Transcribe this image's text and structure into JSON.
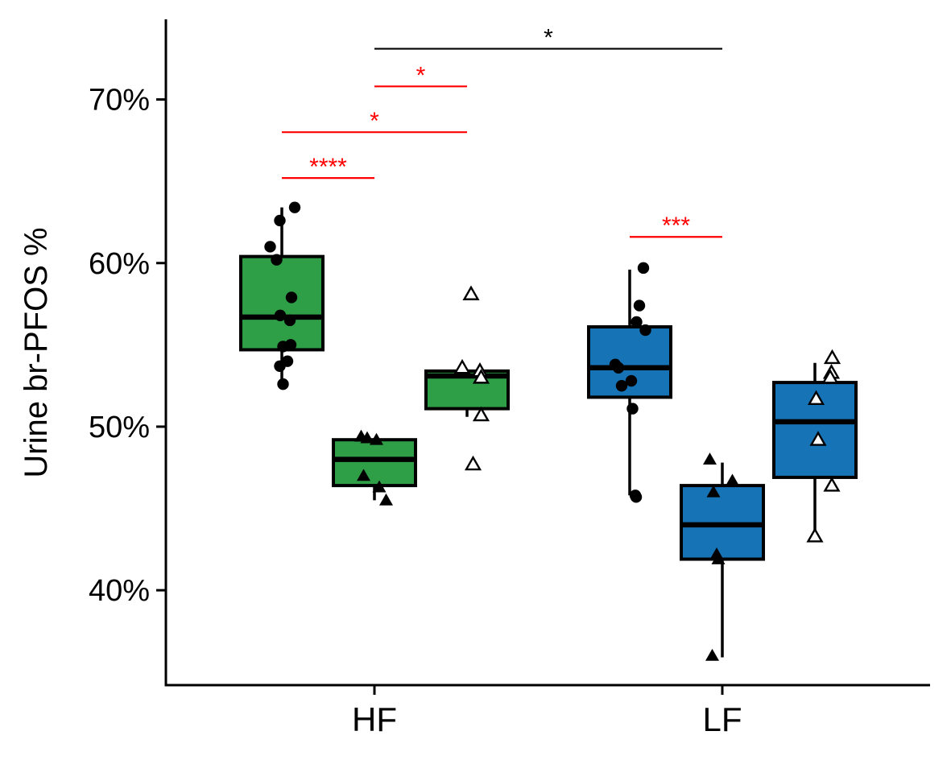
{
  "chart_data": {
    "type": "box",
    "title": "",
    "xlabel": "",
    "ylabel": "Urine br-PFOS %",
    "categories": [
      "HF",
      "LF"
    ],
    "yticks": [
      {
        "value": 40,
        "label": "40%"
      },
      {
        "value": 50,
        "label": "50%"
      },
      {
        "value": 60,
        "label": "60%"
      },
      {
        "value": 70,
        "label": "70%"
      }
    ],
    "ylim": [
      34.2,
      74.9
    ],
    "grid": false,
    "legend": "none",
    "colors": {
      "HF": "#2e9e47",
      "LF": "#1673b6",
      "sig_red": "#ff0000",
      "sig_black": "#000000"
    },
    "groups": [
      {
        "category": "HF",
        "offset": -1,
        "marker": "circle-filled",
        "whisker_low": 52.8,
        "q1": 54.7,
        "median": 56.7,
        "q3": 60.4,
        "whisker_high": 63.4,
        "points": [
          {
            "dx": -0.29,
            "y": 61.0
          },
          {
            "dx": -0.13,
            "y": 60.2
          },
          {
            "dx": -0.05,
            "y": 62.6
          },
          {
            "dx": 0.32,
            "y": 63.4
          },
          {
            "dx": -0.04,
            "y": 56.8
          },
          {
            "dx": 0.24,
            "y": 57.9
          },
          {
            "dx": 0.2,
            "y": 56.5
          },
          {
            "dx": 0.03,
            "y": 54.9
          },
          {
            "dx": 0.22,
            "y": 55.0
          },
          {
            "dx": 0.14,
            "y": 54.0
          },
          {
            "dx": -0.05,
            "y": 53.7
          },
          {
            "dx": 0.03,
            "y": 52.6
          }
        ]
      },
      {
        "category": "HF",
        "offset": 0,
        "marker": "triangle-filled",
        "whisker_low": 45.5,
        "q1": 46.4,
        "median": 48.0,
        "q3": 49.2,
        "whisker_high": 49.3,
        "points": [
          {
            "dx": -0.33,
            "y": 49.4
          },
          {
            "dx": -0.18,
            "y": 49.3
          },
          {
            "dx": 0.05,
            "y": 49.2
          },
          {
            "dx": -0.27,
            "y": 47.0
          },
          {
            "dx": 0.12,
            "y": 46.3
          },
          {
            "dx": 0.29,
            "y": 45.5
          }
        ]
      },
      {
        "category": "HF",
        "offset": 1,
        "marker": "triangle-open",
        "whisker_low": 50.6,
        "q1": 51.1,
        "median": 53.1,
        "q3": 53.4,
        "whisker_high": 53.5,
        "points": [
          {
            "dx": 0.1,
            "y": 58.1
          },
          {
            "dx": -0.12,
            "y": 53.6
          },
          {
            "dx": 0.32,
            "y": 53.4
          },
          {
            "dx": 0.35,
            "y": 53.0
          },
          {
            "dx": 0.35,
            "y": 50.7
          },
          {
            "dx": 0.15,
            "y": 47.7
          }
        ]
      },
      {
        "category": "LF",
        "offset": -1,
        "marker": "circle-filled",
        "whisker_low": 45.8,
        "q1": 51.8,
        "median": 53.6,
        "q3": 56.1,
        "whisker_high": 59.6,
        "points": [
          {
            "dx": 0.34,
            "y": 59.7
          },
          {
            "dx": 0.24,
            "y": 57.4
          },
          {
            "dx": 0.17,
            "y": 56.4
          },
          {
            "dx": 0.39,
            "y": 55.9
          },
          {
            "dx": -0.36,
            "y": 53.8
          },
          {
            "dx": -0.28,
            "y": 53.6
          },
          {
            "dx": 0.04,
            "y": 52.8
          },
          {
            "dx": -0.2,
            "y": 52.5
          },
          {
            "dx": 0.07,
            "y": 51.1
          },
          {
            "dx": 0.14,
            "y": 45.8
          },
          {
            "dx": 0.16,
            "y": 45.7
          }
        ]
      },
      {
        "category": "LF",
        "offset": 0,
        "marker": "triangle-filled",
        "whisker_low": 35.9,
        "q1": 41.9,
        "median": 44.0,
        "q3": 46.4,
        "whisker_high": 47.8,
        "points": [
          {
            "dx": -0.31,
            "y": 48.0
          },
          {
            "dx": -0.22,
            "y": 46.0
          },
          {
            "dx": 0.25,
            "y": 46.7
          },
          {
            "dx": -0.14,
            "y": 42.2
          },
          {
            "dx": -0.1,
            "y": 41.9
          },
          {
            "dx": -0.25,
            "y": 36.0
          }
        ]
      },
      {
        "category": "LF",
        "offset": 1,
        "marker": "triangle-open",
        "whisker_low": 43.2,
        "q1": 46.9,
        "median": 50.3,
        "q3": 52.7,
        "whisker_high": 53.9,
        "points": [
          {
            "dx": 0.43,
            "y": 54.2
          },
          {
            "dx": 0.41,
            "y": 53.3
          },
          {
            "dx": 0.38,
            "y": 53.0
          },
          {
            "dx": 0.03,
            "y": 51.7
          },
          {
            "dx": 0.08,
            "y": 49.2
          },
          {
            "dx": 0.42,
            "y": 46.4
          },
          {
            "dx": 0.0,
            "y": 43.3
          }
        ]
      }
    ],
    "significance": [
      {
        "from_cat": 0,
        "from_off": -1,
        "to_cat": 0,
        "to_off": 0,
        "y": 65.2,
        "label": "****",
        "color": "red"
      },
      {
        "from_cat": 0,
        "from_off": -1,
        "to_cat": 0,
        "to_off": 1,
        "y": 68.0,
        "label": "*",
        "color": "red"
      },
      {
        "from_cat": 0,
        "from_off": 0,
        "to_cat": 0,
        "to_off": 1,
        "y": 70.8,
        "label": "*",
        "color": "red"
      },
      {
        "from_cat": 0,
        "from_off": 0,
        "to_cat": 1,
        "to_off": 0,
        "y": 73.1,
        "label": "*",
        "color": "black"
      },
      {
        "from_cat": 1,
        "from_off": -1,
        "to_cat": 1,
        "to_off": 0,
        "y": 61.6,
        "label": "***",
        "color": "red"
      }
    ]
  }
}
